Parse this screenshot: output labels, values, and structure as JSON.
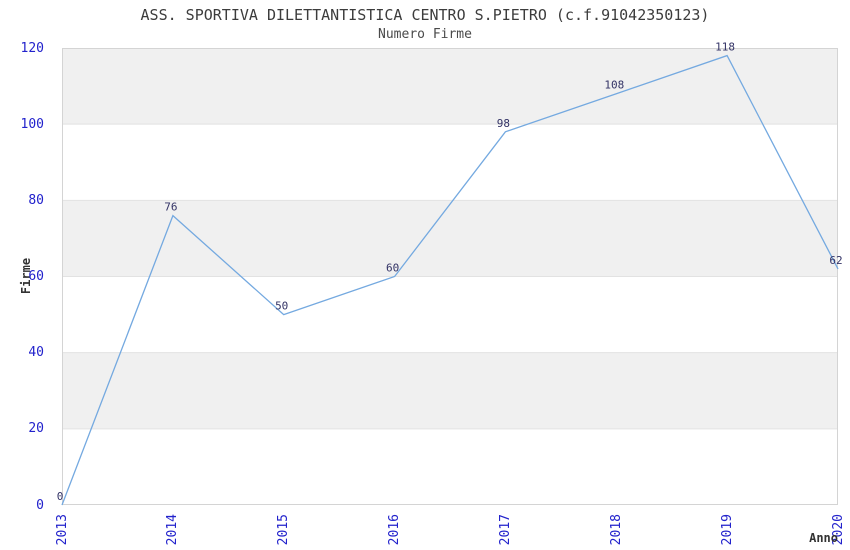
{
  "chart_data": {
    "type": "line",
    "title": "ASS. SPORTIVA DILETTANTISTICA CENTRO S.PIETRO (c.f.91042350123)",
    "subtitle": "Numero Firme",
    "xlabel": "Anno",
    "ylabel": "Firme",
    "categories": [
      "2013",
      "2014",
      "2015",
      "2016",
      "2017",
      "2018",
      "2019",
      "2020"
    ],
    "series": [
      {
        "name": "Numero Firme",
        "values": [
          0,
          76,
          50,
          60,
          98,
          108,
          118,
          62
        ]
      }
    ],
    "ylim": [
      0,
      120
    ],
    "yticks": [
      0,
      20,
      40,
      60,
      80,
      100,
      120
    ],
    "grid": "horizontal-alternating-bands",
    "legend": "none",
    "point_labels": true,
    "colors": {
      "line": "#74a9e0",
      "point_label": "#333366",
      "tick_label": "#2222cc",
      "band_fill": "#f0f0f0",
      "band_alt_fill": "#ffffff",
      "grid_line": "#e2e2e2",
      "plot_border": "#d4d4d4",
      "title_text": "#3c3c3c",
      "subtitle_text": "#4a4a4a",
      "axis_label_text": "#333333"
    }
  }
}
